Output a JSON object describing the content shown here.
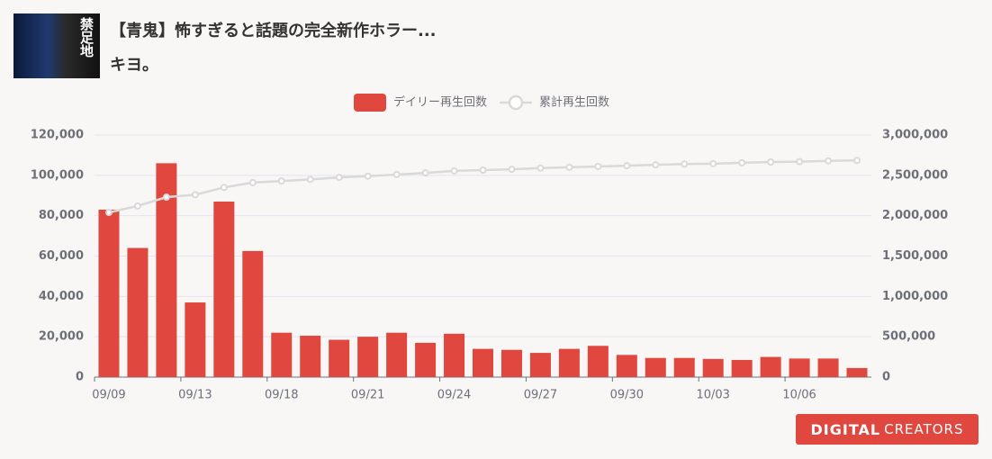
{
  "header": {
    "title": "【青鬼】怖すぎると話題の完全新作ホラー...",
    "channel": "キヨ。",
    "thumbnail_text": "禁足地"
  },
  "logo": {
    "mark": "DIGITAL",
    "text": "CREATORS"
  },
  "chart_data": {
    "type": "bar_line",
    "categories": [
      "09/09",
      null,
      null,
      "09/13",
      null,
      null,
      "09/18",
      null,
      null,
      "09/21",
      null,
      null,
      "09/24",
      null,
      null,
      "09/27",
      null,
      null,
      "09/30",
      null,
      null,
      "10/03",
      null,
      null,
      "10/06",
      null,
      null
    ],
    "series": [
      {
        "name": "デイリー再生回数",
        "type": "bar",
        "color": "#e0473e",
        "values": [
          83000,
          64000,
          106000,
          37000,
          87000,
          62500,
          22000,
          20500,
          18500,
          20000,
          22000,
          17000,
          21500,
          14000,
          13500,
          12000,
          14000,
          15500,
          11000,
          9500,
          9500,
          9000,
          8500,
          10000,
          9200,
          9200,
          4500
        ]
      },
      {
        "name": "累計再生回数",
        "type": "line",
        "axis": "y2",
        "color": "#d9d9d9",
        "values": [
          2040000,
          2120000,
          2230000,
          2260000,
          2350000,
          2410000,
          2430000,
          2450000,
          2475000,
          2490000,
          2510000,
          2530000,
          2555000,
          2565000,
          2575000,
          2590000,
          2600000,
          2610000,
          2620000,
          2630000,
          2640000,
          2645000,
          2655000,
          2665000,
          2670000,
          2680000,
          2685000
        ]
      }
    ],
    "ylim": [
      0,
      120000
    ],
    "yticks": [
      0,
      {
        "value": 20000,
        "label": "20,000"
      },
      {
        "value": 40000,
        "label": "40,000"
      },
      {
        "value": 60000,
        "label": "60,000"
      },
      {
        "value": 80000,
        "label": "80,000"
      },
      {
        "value": 100000,
        "label": "100,000"
      },
      {
        "value": 120000,
        "label": "120,000"
      }
    ],
    "y2lim": [
      0,
      3000000
    ],
    "y2ticks": [
      0,
      {
        "value": 500000,
        "label": "500,000"
      },
      {
        "value": 1000000,
        "label": "1,000,000"
      },
      {
        "value": 1500000,
        "label": "1,500,000"
      },
      {
        "value": 2000000,
        "label": "2,000,000"
      },
      {
        "value": 2500000,
        "label": "2,500,000"
      },
      {
        "value": 3000000,
        "label": "3,000,000"
      }
    ],
    "grid": true,
    "legend": "top"
  }
}
